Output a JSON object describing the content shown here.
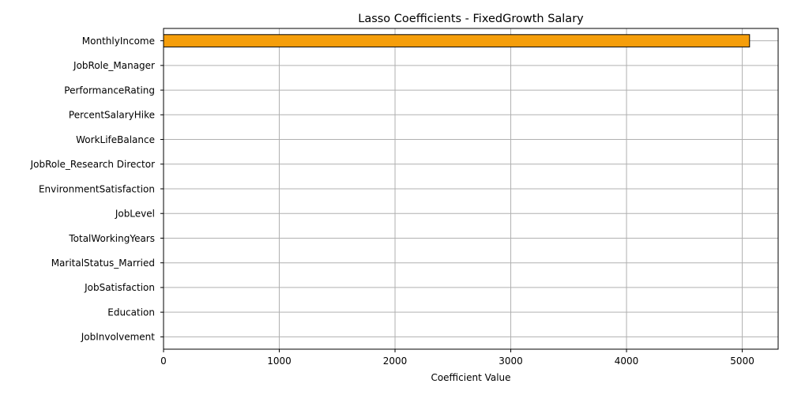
{
  "chart_data": {
    "type": "bar",
    "orientation": "horizontal",
    "title": "Lasso Coefficients - FixedGrowth Salary",
    "xlabel": "Coefficient Value",
    "ylabel": "",
    "categories": [
      "MonthlyIncome",
      "JobRole_Manager",
      "PerformanceRating",
      "PercentSalaryHike",
      "WorkLifeBalance",
      "JobRole_Research Director",
      "EnvironmentSatisfaction",
      "JobLevel",
      "TotalWorkingYears",
      "MaritalStatus_Married",
      "JobSatisfaction",
      "Education",
      "JobInvolvement"
    ],
    "values": [
      5063,
      0,
      0,
      0,
      0,
      0,
      0,
      0,
      0,
      0,
      0,
      0,
      0
    ],
    "xlim": [
      0,
      5310
    ],
    "xticks": [
      0,
      1000,
      2000,
      3000,
      4000,
      5000
    ],
    "grid": true,
    "bar_color": "#f59e0b",
    "bar_edge_color": "#000000"
  }
}
